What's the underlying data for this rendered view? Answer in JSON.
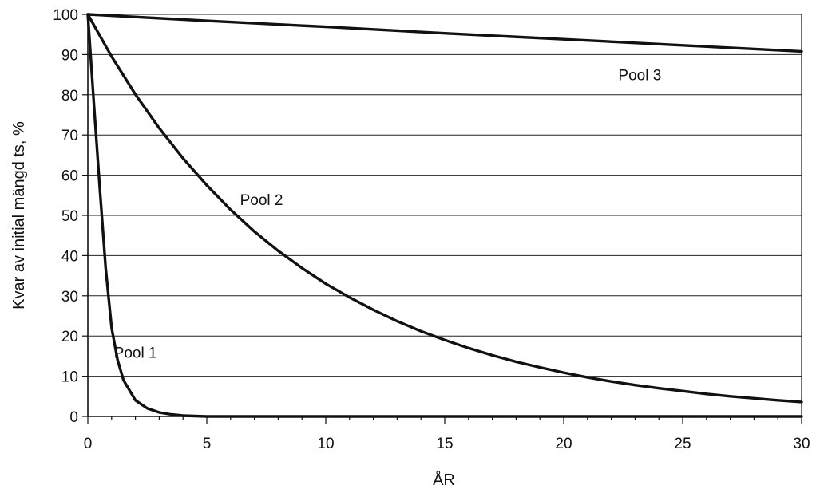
{
  "chart_data": {
    "type": "line",
    "title": "",
    "xlabel": "ÅR",
    "ylabel": "Kvar av initial mängd ts, %",
    "xlim": [
      0,
      30
    ],
    "ylim": [
      0,
      100
    ],
    "x_ticks": [
      0,
      5,
      10,
      15,
      20,
      25,
      30
    ],
    "y_ticks": [
      0,
      10,
      20,
      30,
      40,
      50,
      60,
      70,
      80,
      90,
      100
    ],
    "grid": "horizontal",
    "legend": "none",
    "series": [
      {
        "name": "Pool 1",
        "x": [
          0,
          0.25,
          0.5,
          0.75,
          1,
          1.25,
          1.5,
          2,
          2.5,
          3,
          3.5,
          4,
          5,
          6,
          8,
          10,
          15,
          20,
          25,
          30
        ],
        "values": [
          100,
          78,
          57,
          37,
          22,
          14,
          9,
          4,
          2,
          1,
          0.5,
          0.2,
          0,
          0,
          0,
          0,
          0,
          0,
          0,
          0
        ]
      },
      {
        "name": "Pool 2",
        "x": [
          0,
          1,
          2,
          3,
          4,
          5,
          6,
          7,
          8,
          9,
          10,
          11,
          12,
          13,
          14,
          15,
          16,
          17,
          18,
          19,
          20,
          21,
          22,
          23,
          24,
          25,
          26,
          27,
          28,
          29,
          30
        ],
        "values": [
          100,
          89.5,
          80.1,
          71.7,
          64.2,
          57.5,
          51.4,
          46.0,
          41.2,
          36.9,
          33.0,
          29.6,
          26.5,
          23.7,
          21.2,
          19.0,
          17.0,
          15.2,
          13.6,
          12.2,
          10.9,
          9.7,
          8.7,
          7.8,
          7.0,
          6.3,
          5.6,
          5.0,
          4.5,
          4.0,
          3.6
        ]
      },
      {
        "name": "Pool 3",
        "x": [
          0,
          5,
          10,
          15,
          20,
          25,
          30
        ],
        "values": [
          100,
          98.4,
          96.9,
          95.3,
          93.8,
          92.3,
          90.8
        ]
      }
    ]
  }
}
